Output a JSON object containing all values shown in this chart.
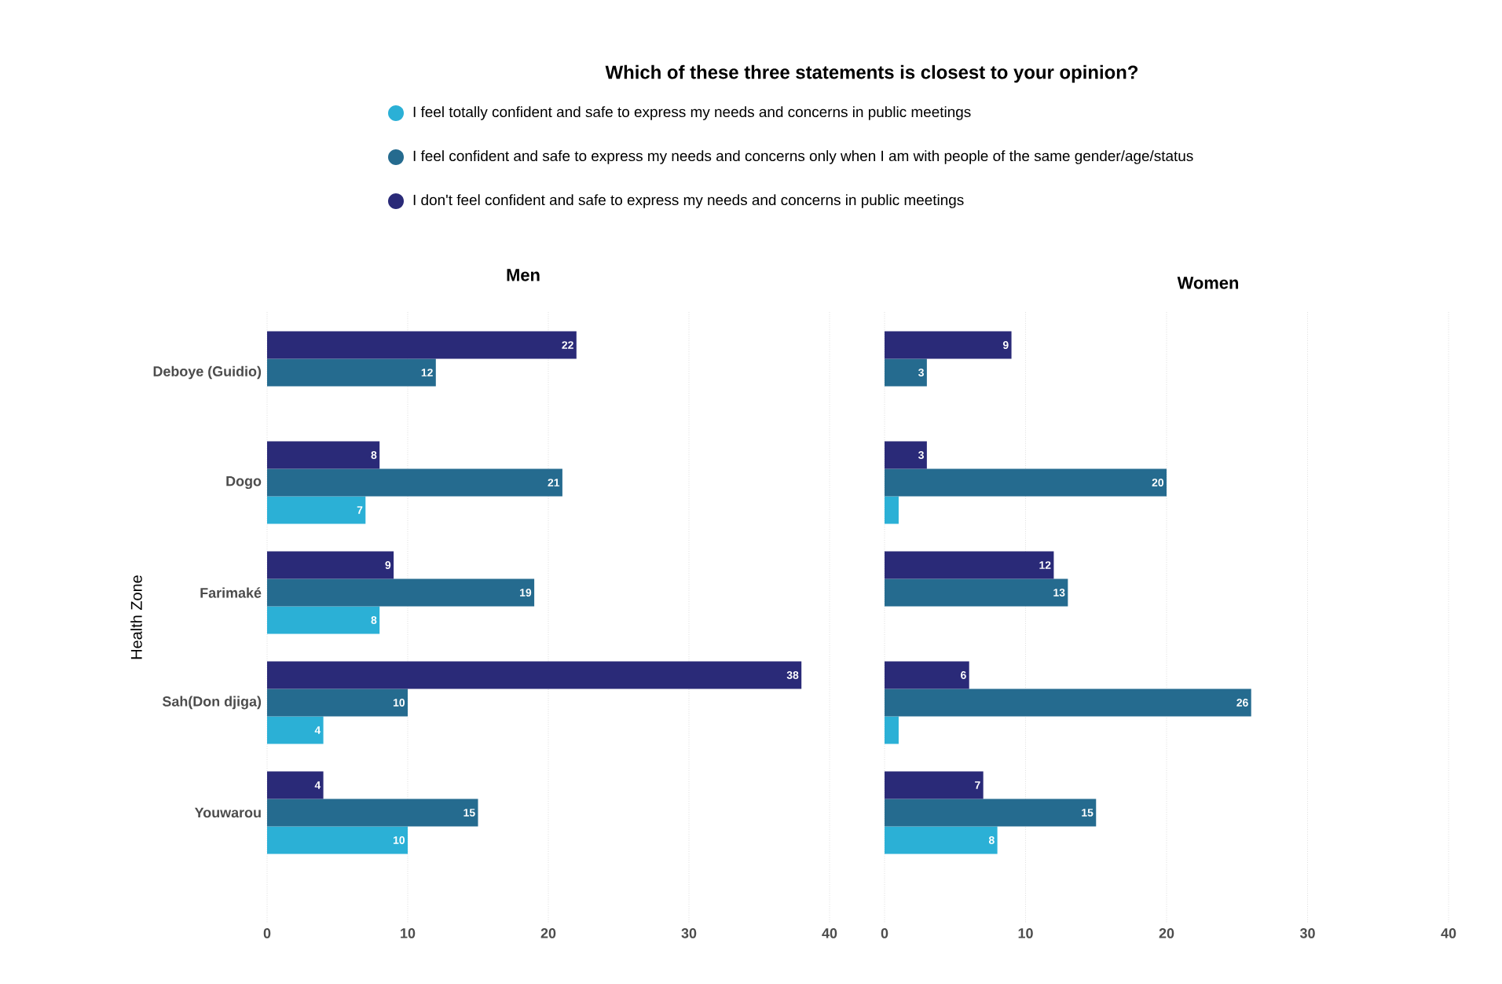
{
  "chart_data": [
    {
      "type": "bar",
      "orientation": "horizontal",
      "title": "Which of these three statements is closest to your opinion?",
      "subtitle": "Men",
      "ylabel": "Health Zone",
      "categories": [
        "Deboye (Guidio)",
        "Dogo",
        "Farimaké",
        "Sah(Don djiga)",
        "Youwarou"
      ],
      "series": [
        {
          "name": "I feel totally confident and safe to express my needs and concerns in public meetings",
          "color": "#2bb0d6",
          "values": [
            null,
            7,
            8,
            4,
            10
          ]
        },
        {
          "name": "I feel confident and safe to express my needs and concerns only when I am with people of the same gender/age/status",
          "color": "#256b8f",
          "values": [
            12,
            21,
            19,
            10,
            15
          ]
        },
        {
          "name": "I don't feel confident and safe to express my needs and concerns in public meetings",
          "color": "#2a2a78",
          "values": [
            22,
            8,
            9,
            38,
            4
          ]
        }
      ],
      "xlim": [
        0,
        40
      ],
      "xticks": [
        0,
        10,
        20,
        30,
        40
      ],
      "grid": "x",
      "legend": "top",
      "data_labels": true
    },
    {
      "type": "bar",
      "orientation": "horizontal",
      "subtitle": "Women",
      "categories": [
        null,
        null,
        null,
        null,
        null
      ],
      "series": [
        {
          "color": "#2bb0d6",
          "values": [
            null,
            1,
            null,
            1,
            8
          ],
          "value_labels": [
            null,
            null,
            null,
            null,
            "8"
          ]
        },
        {
          "color": "#256b8f",
          "values": [
            3,
            20,
            13,
            26,
            15
          ],
          "value_labels": [
            "3",
            "20",
            "13",
            "26",
            "15"
          ]
        },
        {
          "color": "#2a2a78",
          "values": [
            9,
            3,
            12,
            6,
            7
          ],
          "value_labels": [
            "9",
            "3",
            "12",
            "6",
            "7"
          ]
        }
      ],
      "xlim": [
        0,
        40
      ],
      "xticks": [
        0,
        10,
        20,
        30,
        40
      ],
      "grid": "x",
      "tick_labels": "x"
    }
  ]
}
